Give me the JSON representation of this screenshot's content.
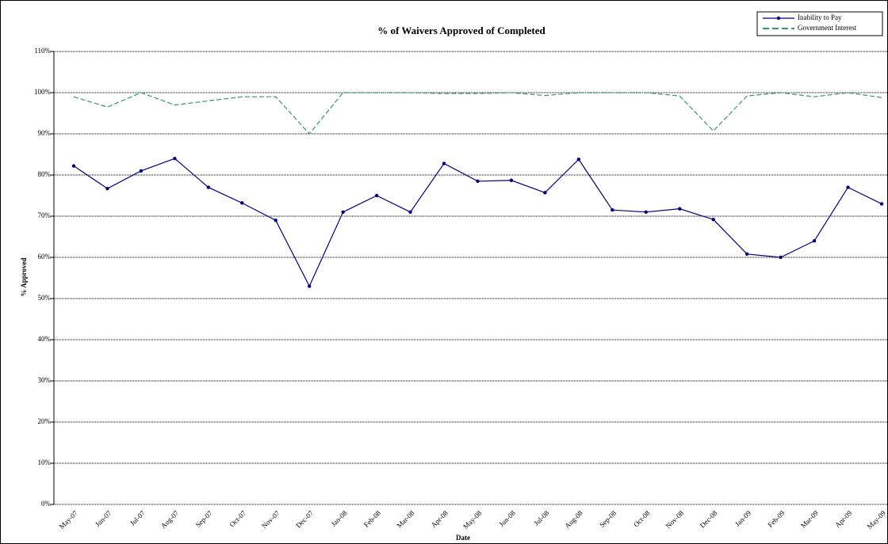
{
  "chart_data": {
    "type": "line",
    "title": "% of Waivers Approved of Completed",
    "y_label": "% Approved",
    "x_label": "Date",
    "categories": [
      "May-07",
      "Jun-07",
      "Jul-07",
      "Aug-07",
      "Sep-07",
      "Oct-07",
      "Nov-07",
      "Dec-07",
      "Jan-08",
      "Feb-08",
      "Mar-08",
      "Apr-08",
      "May-08",
      "Jun-08",
      "Jul-08",
      "Aug-08",
      "Sep-08",
      "Oct-08",
      "Nov-08",
      "Dec-08",
      "Jan-09",
      "Feb-09",
      "Mar-09",
      "Apr-09",
      "May-09"
    ],
    "series": [
      {
        "name": "Inability to Pay",
        "color": "#000080",
        "dash": false,
        "markers": true,
        "values": [
          82.2,
          76.7,
          81,
          84,
          77,
          73.2,
          69,
          53,
          71,
          75,
          71,
          82.8,
          78.5,
          78.7,
          75.7,
          83.8,
          71.5,
          71,
          71.8,
          69.2,
          60.8,
          60,
          64,
          77,
          73
        ]
      },
      {
        "name": "Government Interest",
        "color": "#339966",
        "dash": true,
        "markers": false,
        "values": [
          99,
          96.5,
          100,
          97,
          98,
          99,
          99,
          90,
          100,
          100,
          100,
          99.8,
          99.8,
          100,
          99.3,
          100,
          100,
          100,
          99.2,
          90.7,
          99.2,
          100,
          99,
          100,
          98.8
        ]
      }
    ],
    "ylim": [
      0,
      110
    ],
    "yticks": [
      {
        "value": 0,
        "label": "0%"
      },
      {
        "value": 10,
        "label": "10%"
      },
      {
        "value": 20,
        "label": "20%"
      },
      {
        "value": 30,
        "label": "30%"
      },
      {
        "value": 40,
        "label": "40%"
      },
      {
        "value": 50,
        "label": "50%"
      },
      {
        "value": 60,
        "label": "60%"
      },
      {
        "value": 70,
        "label": "70%"
      },
      {
        "value": 80,
        "label": "80%"
      },
      {
        "value": 90,
        "label": "90%"
      },
      {
        "value": 100,
        "label": "100%"
      },
      {
        "value": 110,
        "label": "110%"
      }
    ],
    "grid": true,
    "legend": "top-right"
  }
}
